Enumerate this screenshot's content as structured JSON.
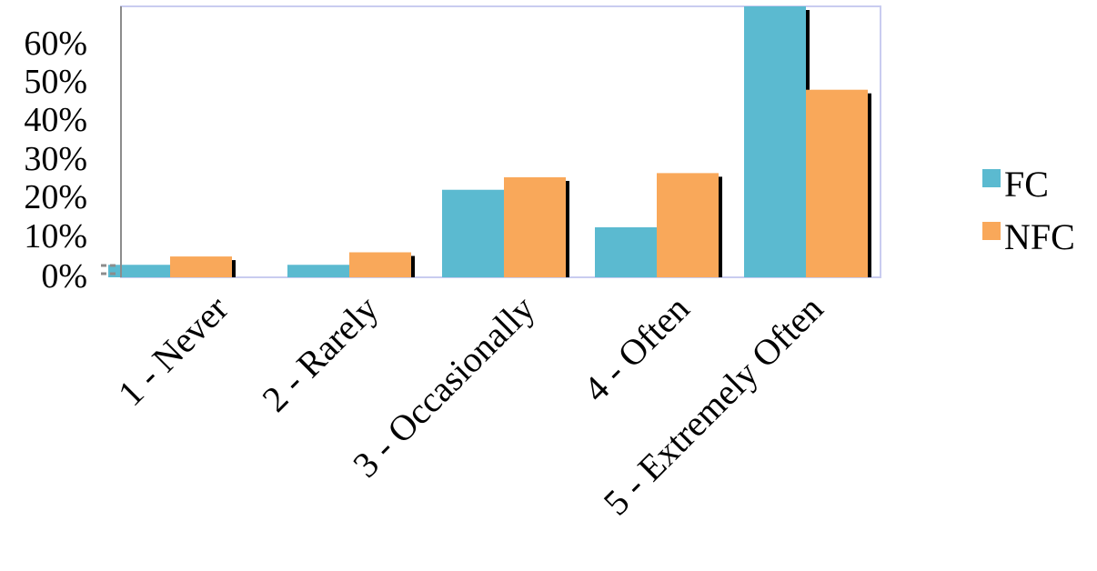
{
  "chart_data": {
    "type": "bar",
    "title": "",
    "xlabel": "",
    "ylabel": "",
    "categories": [
      "1 - Never",
      "2 - Rarely",
      "3 - Occasionally",
      "4 - Often",
      "5 - Extremely Often"
    ],
    "series": [
      {
        "name": "FC",
        "values": [
          3,
          3,
          21,
          12,
          65
        ],
        "color": "#5BBAD0"
      },
      {
        "name": "NFC",
        "values": [
          5,
          6,
          24,
          25,
          45
        ],
        "color": "#F9A85A"
      }
    ],
    "ylim": [
      0,
      65
    ],
    "yticks": [
      0,
      10,
      20,
      30,
      40,
      50,
      60
    ],
    "ytick_labels": [
      "0%",
      "10%",
      "20%",
      "30%",
      "40%",
      "50%",
      "60%"
    ],
    "grid": false,
    "legend_position": "right",
    "colors": {
      "frame": "#C9CCF0",
      "axis": "#8C8C8C",
      "shadow": "#000000"
    }
  }
}
